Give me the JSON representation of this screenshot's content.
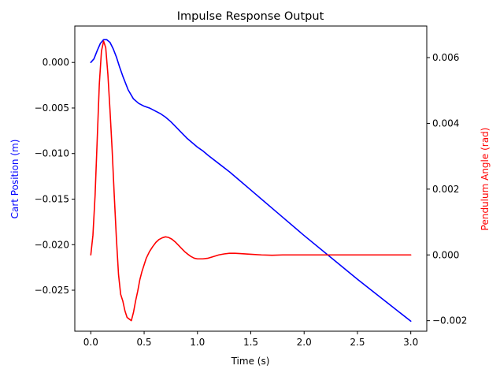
{
  "chart_data": {
    "type": "line",
    "title": "Impulse Response Output",
    "xlabel": "Time (s)",
    "ylabel_left": "Cart Position (m)",
    "ylabel_right": "Pendulum Angle (rad)",
    "xlim": [
      -0.15,
      3.15
    ],
    "ylim_left": [
      -0.0295,
      0.004
    ],
    "ylim_right": [
      -0.00232,
      0.00696
    ],
    "x_ticks": [
      0.0,
      0.5,
      1.0,
      1.5,
      2.0,
      2.5,
      3.0
    ],
    "x_tick_labels": [
      "0.0",
      "0.5",
      "1.0",
      "1.5",
      "2.0",
      "2.5",
      "3.0"
    ],
    "y_left_ticks": [
      0.0,
      -0.005,
      -0.01,
      -0.015,
      -0.02,
      -0.025
    ],
    "y_left_tick_labels": [
      "0.000",
      "−0.005",
      "−0.010",
      "−0.015",
      "−0.020",
      "−0.025"
    ],
    "y_right_ticks": [
      0.006,
      0.004,
      0.002,
      0.0,
      -0.002
    ],
    "y_right_tick_labels": [
      "0.006",
      "0.004",
      "0.002",
      "0.000",
      "−0.002"
    ],
    "grid": false,
    "series": [
      {
        "color": "#0000ff",
        "axis": "left",
        "x": [
          0.0,
          0.03,
          0.06,
          0.09,
          0.12,
          0.15,
          0.18,
          0.21,
          0.24,
          0.27,
          0.3,
          0.35,
          0.4,
          0.45,
          0.5,
          0.55,
          0.6,
          0.65,
          0.7,
          0.75,
          0.8,
          0.85,
          0.9,
          0.95,
          1.0,
          1.05,
          1.1,
          1.2,
          1.3,
          1.4,
          1.5,
          1.75,
          2.0,
          2.25,
          2.5,
          2.75,
          3.0
        ],
        "values": [
          0.0,
          0.0004,
          0.0013,
          0.0021,
          0.0025,
          0.0025,
          0.0022,
          0.0015,
          0.0006,
          -0.0005,
          -0.0015,
          -0.003,
          -0.004,
          -0.0045,
          -0.0048,
          -0.005,
          -0.0053,
          -0.0056,
          -0.006,
          -0.0065,
          -0.0071,
          -0.0077,
          -0.0083,
          -0.0088,
          -0.0093,
          -0.0097,
          -0.0102,
          -0.0111,
          -0.012,
          -0.013,
          -0.014,
          -0.0165,
          -0.019,
          -0.0214,
          -0.0238,
          -0.0261,
          -0.0284
        ]
      },
      {
        "color": "#ff0000",
        "axis": "right",
        "x": [
          0.0,
          0.02,
          0.04,
          0.06,
          0.08,
          0.1,
          0.12,
          0.14,
          0.16,
          0.18,
          0.2,
          0.22,
          0.24,
          0.26,
          0.28,
          0.3,
          0.32,
          0.34,
          0.36,
          0.38,
          0.4,
          0.42,
          0.44,
          0.46,
          0.48,
          0.5,
          0.52,
          0.55,
          0.58,
          0.61,
          0.64,
          0.67,
          0.7,
          0.73,
          0.76,
          0.79,
          0.82,
          0.85,
          0.88,
          0.91,
          0.94,
          0.97,
          1.0,
          1.05,
          1.1,
          1.15,
          1.2,
          1.25,
          1.3,
          1.35,
          1.4,
          1.5,
          1.6,
          1.7,
          1.8,
          2.0,
          2.5,
          3.0
        ],
        "values": [
          0.0,
          0.0006,
          0.0018,
          0.0035,
          0.0052,
          0.0062,
          0.0065,
          0.0063,
          0.0055,
          0.0044,
          0.0032,
          0.0018,
          0.0005,
          -0.0006,
          -0.0012,
          -0.0014,
          -0.0017,
          -0.0019,
          -0.00195,
          -0.002,
          -0.00175,
          -0.0014,
          -0.0011,
          -0.00075,
          -0.0005,
          -0.0003,
          -0.0001,
          0.0001,
          0.00025,
          0.00038,
          0.00047,
          0.00052,
          0.00055,
          0.00053,
          0.00048,
          0.0004,
          0.0003,
          0.0002,
          0.0001,
          2e-05,
          -5e-05,
          -0.0001,
          -0.00012,
          -0.00012,
          -0.0001,
          -5e-05,
          0.0,
          3e-05,
          5e-05,
          5e-05,
          4e-05,
          2e-05,
          0.0,
          -1e-05,
          0.0,
          0.0,
          0.0,
          0.0
        ]
      }
    ]
  }
}
